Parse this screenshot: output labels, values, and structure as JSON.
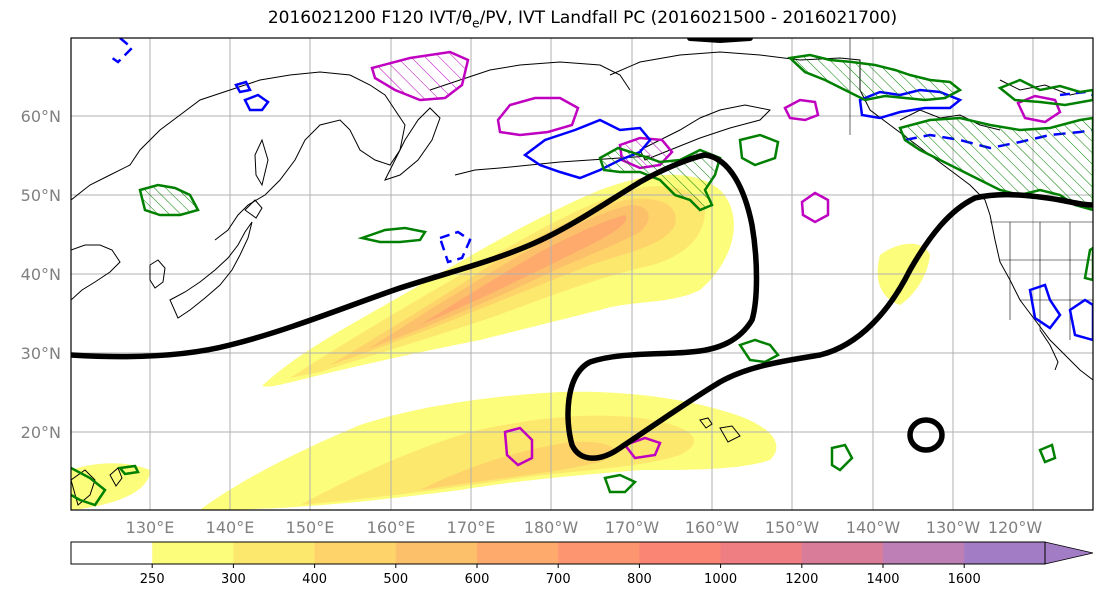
{
  "title": "2016021200 F120 IVT/θe/PV, IVT Landfall PC (2016021500 - 2016021700)",
  "lat_labels": [
    "20°N",
    "30°N",
    "40°N",
    "50°N",
    "60°N"
  ],
  "lon_labels": [
    "130°E",
    "140°E",
    "150°E",
    "160°E",
    "170°E",
    "180°W",
    "170°W",
    "160°W",
    "150°W",
    "140°W",
    "130°W",
    "120°W"
  ],
  "colorbar": {
    "levels": [
      "250",
      "300",
      "400",
      "500",
      "600",
      "700",
      "800",
      "1000",
      "1200",
      "1400",
      "1600"
    ],
    "colors": [
      "#ffffff",
      "#fdfd7c",
      "#fde86e",
      "#fdd36a",
      "#fdc06a",
      "#fdaa6c",
      "#fd9670",
      "#fb8575",
      "#ef7e83",
      "#d97c99",
      "#be7fb6",
      "#a27dc6"
    ],
    "extend": "max"
  },
  "styles": {
    "theta_e_contour": "#008000",
    "pv_negative": "#0000ff",
    "pv_positive": "#c000c0",
    "ivt_landfall_pc": "#000000"
  }
}
